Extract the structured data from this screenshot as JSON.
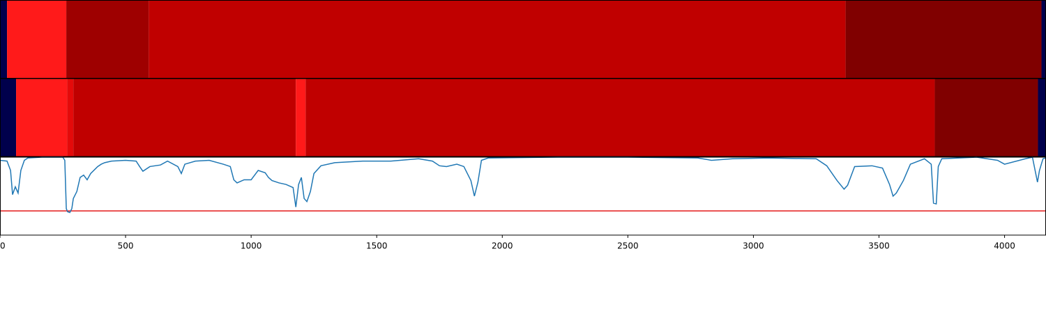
{
  "chart_data": {
    "type": "line",
    "xlim": [
      0,
      4165
    ],
    "ylim": [
      0,
      1
    ],
    "xticks": [
      0,
      500,
      1000,
      1500,
      2000,
      2500,
      3000,
      3500,
      4000
    ],
    "strips": [
      {
        "segments": [
          {
            "start": 0,
            "end": 28,
            "color": "#00004c"
          },
          {
            "start": 28,
            "end": 264,
            "color": "#ff1a1a"
          },
          {
            "start": 264,
            "end": 592,
            "color": "#9e0000"
          },
          {
            "start": 592,
            "end": 3367,
            "color": "#c00000"
          },
          {
            "start": 3367,
            "end": 4147,
            "color": "#800000"
          },
          {
            "start": 4147,
            "end": 4165,
            "color": "#00004c"
          }
        ]
      },
      {
        "segments": [
          {
            "start": 0,
            "end": 64,
            "color": "#00004c"
          },
          {
            "start": 64,
            "end": 267,
            "color": "#ff1a1a"
          },
          {
            "start": 267,
            "end": 292,
            "color": "#e40a0a"
          },
          {
            "start": 292,
            "end": 1178,
            "color": "#c00000"
          },
          {
            "start": 1178,
            "end": 1217,
            "color": "#ff1a1a"
          },
          {
            "start": 1217,
            "end": 3722,
            "color": "#c00000"
          },
          {
            "start": 3722,
            "end": 4133,
            "color": "#800000"
          },
          {
            "start": 4133,
            "end": 4165,
            "color": "#00004c"
          }
        ]
      }
    ],
    "threshold": {
      "value": 0.31,
      "color": "#e41a1a"
    },
    "series": [
      {
        "color": "#1f77b4",
        "x": [
          0,
          28,
          42,
          50,
          61,
          72,
          83,
          97,
          111,
          167,
          250,
          258,
          264,
          269,
          278,
          286,
          292,
          306,
          319,
          333,
          347,
          361,
          389,
          403,
          417,
          444,
          500,
          542,
          556,
          569,
          597,
          639,
          667,
          708,
          722,
          736,
          778,
          833,
          889,
          917,
          931,
          944,
          972,
          1000,
          1028,
          1056,
          1069,
          1083,
          1111,
          1139,
          1167,
          1178,
          1189,
          1200,
          1211,
          1222,
          1236,
          1250,
          1278,
          1333,
          1444,
          1556,
          1667,
          1722,
          1750,
          1778,
          1819,
          1847,
          1875,
          1889,
          1903,
          1917,
          1944,
          2222,
          2500,
          2778,
          2833,
          2917,
          3056,
          3250,
          3292,
          3333,
          3361,
          3375,
          3403,
          3472,
          3514,
          3542,
          3556,
          3569,
          3597,
          3625,
          3681,
          3708,
          3717,
          3728,
          3736,
          3750,
          3889,
          3972,
          4000,
          4083,
          4111,
          4131,
          4139,
          4153,
          4165
        ],
        "values": [
          0.96,
          0.95,
          0.83,
          0.52,
          0.62,
          0.54,
          0.83,
          0.96,
          0.99,
          1.0,
          1.0,
          0.96,
          0.34,
          0.3,
          0.29,
          0.34,
          0.47,
          0.56,
          0.74,
          0.77,
          0.71,
          0.79,
          0.88,
          0.91,
          0.93,
          0.95,
          0.96,
          0.95,
          0.88,
          0.82,
          0.88,
          0.9,
          0.95,
          0.88,
          0.79,
          0.91,
          0.95,
          0.96,
          0.91,
          0.88,
          0.71,
          0.67,
          0.71,
          0.71,
          0.83,
          0.8,
          0.74,
          0.7,
          0.67,
          0.65,
          0.61,
          0.36,
          0.65,
          0.74,
          0.47,
          0.43,
          0.56,
          0.79,
          0.89,
          0.93,
          0.95,
          0.95,
          0.98,
          0.95,
          0.89,
          0.88,
          0.91,
          0.88,
          0.7,
          0.5,
          0.68,
          0.96,
          0.99,
          1.0,
          1.0,
          0.99,
          0.96,
          0.98,
          0.99,
          0.98,
          0.89,
          0.7,
          0.59,
          0.64,
          0.88,
          0.89,
          0.86,
          0.65,
          0.5,
          0.54,
          0.7,
          0.91,
          0.98,
          0.91,
          0.41,
          0.4,
          0.88,
          0.98,
          1.0,
          0.96,
          0.91,
          0.98,
          1.0,
          0.68,
          0.83,
          0.98,
          0.99
        ]
      }
    ]
  }
}
